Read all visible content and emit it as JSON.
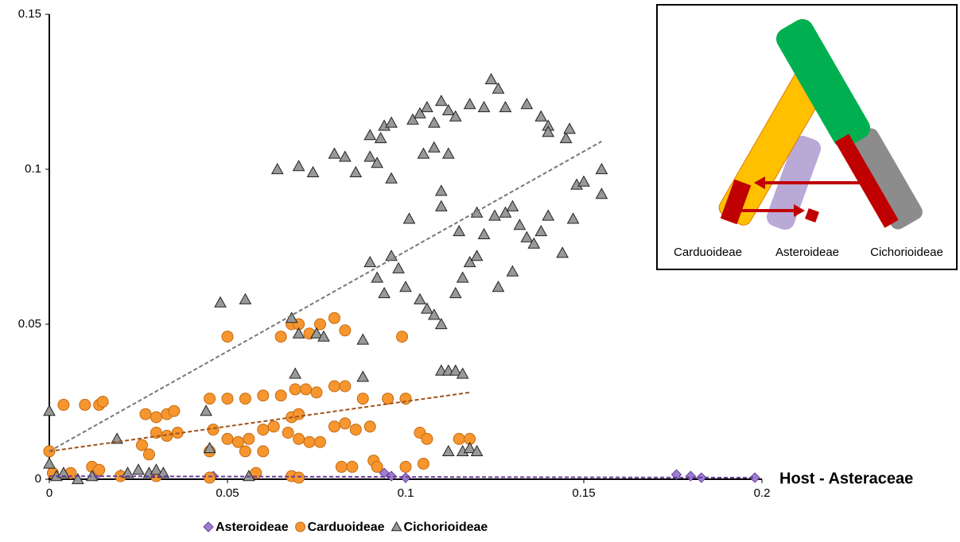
{
  "chart_data": {
    "type": "scatter",
    "xlabel": "Host - Asteraceae",
    "xlim": [
      0,
      0.2
    ],
    "ylim": [
      0,
      0.15
    ],
    "xticks": [
      0,
      0.05,
      0.1,
      0.15,
      0.2
    ],
    "yticks": [
      0,
      0.05,
      0.1,
      0.15
    ],
    "series": [
      {
        "name": "Asteroideae",
        "marker": "diamond",
        "color": "#9b7fcf",
        "edge": "#6a3d9a",
        "x": [
          0.013,
          0.02,
          0.046,
          0.094,
          0.096,
          0.1,
          0.176,
          0.18,
          0.183,
          0.198
        ],
        "values": [
          0.001,
          0.0015,
          0.001,
          0.002,
          0.001,
          0.0005,
          0.0015,
          0.001,
          0.0005,
          0.0005
        ],
        "trend": {
          "x": [
            0,
            0.198
          ],
          "y": [
            0.001,
            0.0005
          ]
        }
      },
      {
        "name": "Carduoideae",
        "marker": "circle",
        "color": "#f7962f",
        "edge": "#c46a10",
        "x": [
          0,
          0.001,
          0.004,
          0.01,
          0.014,
          0.015,
          0.006,
          0.012,
          0.014,
          0.027,
          0.03,
          0.033,
          0.035,
          0.03,
          0.033,
          0.036,
          0.026,
          0.028,
          0.045,
          0.05,
          0.055,
          0.06,
          0.065,
          0.069,
          0.072,
          0.075,
          0.046,
          0.05,
          0.053,
          0.056,
          0.06,
          0.063,
          0.067,
          0.07,
          0.073,
          0.076,
          0.08,
          0.083,
          0.086,
          0.09,
          0.068,
          0.07,
          0.08,
          0.083,
          0.088,
          0.095,
          0.1,
          0.104,
          0.106,
          0.115,
          0.118,
          0.058,
          0.068,
          0.07,
          0.082,
          0.085,
          0.091,
          0.092,
          0.1,
          0.105,
          0.05,
          0.065,
          0.068,
          0.07,
          0.073,
          0.076,
          0.08,
          0.083,
          0.099,
          0.02,
          0.03,
          0.045,
          0.055,
          0.06,
          0.045
        ],
        "values": [
          0.009,
          0.002,
          0.024,
          0.024,
          0.024,
          0.025,
          0.002,
          0.004,
          0.003,
          0.021,
          0.02,
          0.021,
          0.022,
          0.015,
          0.014,
          0.015,
          0.011,
          0.008,
          0.026,
          0.026,
          0.026,
          0.027,
          0.027,
          0.029,
          0.029,
          0.028,
          0.016,
          0.013,
          0.012,
          0.013,
          0.016,
          0.017,
          0.015,
          0.013,
          0.012,
          0.012,
          0.017,
          0.018,
          0.016,
          0.017,
          0.02,
          0.021,
          0.03,
          0.03,
          0.026,
          0.026,
          0.026,
          0.015,
          0.013,
          0.013,
          0.013,
          0.002,
          0.001,
          0.0005,
          0.004,
          0.004,
          0.006,
          0.004,
          0.004,
          0.005,
          0.046,
          0.046,
          0.05,
          0.05,
          0.047,
          0.05,
          0.052,
          0.048,
          0.046,
          0.001,
          0.001,
          0.0005,
          0.009,
          0.009,
          0.009
        ],
        "trend": {
          "x": [
            0,
            0.118
          ],
          "y": [
            0.009,
            0.028
          ]
        }
      },
      {
        "name": "Cichorioideae",
        "marker": "triangle",
        "color": "#999999",
        "edge": "#222222",
        "x": [
          0,
          0,
          0.002,
          0.004,
          0.008,
          0.012,
          0.019,
          0.022,
          0.025,
          0.028,
          0.03,
          0.032,
          0.044,
          0.045,
          0.048,
          0.055,
          0.056,
          0.064,
          0.07,
          0.074,
          0.068,
          0.069,
          0.07,
          0.075,
          0.077,
          0.08,
          0.083,
          0.086,
          0.088,
          0.088,
          0.09,
          0.09,
          0.092,
          0.093,
          0.094,
          0.096,
          0.096,
          0.09,
          0.092,
          0.094,
          0.096,
          0.098,
          0.1,
          0.102,
          0.104,
          0.106,
          0.108,
          0.11,
          0.112,
          0.114,
          0.104,
          0.106,
          0.108,
          0.11,
          0.11,
          0.112,
          0.114,
          0.116,
          0.101,
          0.11,
          0.105,
          0.108,
          0.112,
          0.114,
          0.116,
          0.118,
          0.12,
          0.118,
          0.122,
          0.124,
          0.126,
          0.128,
          0.12,
          0.122,
          0.125,
          0.128,
          0.13,
          0.132,
          0.134,
          0.136,
          0.138,
          0.14,
          0.134,
          0.138,
          0.14,
          0.14,
          0.144,
          0.145,
          0.146,
          0.147,
          0.148,
          0.15,
          0.155,
          0.155,
          0.112,
          0.116,
          0.118,
          0.12,
          0.126,
          0.13,
          0.11,
          0.115
        ],
        "values": [
          0.022,
          0.005,
          0.001,
          0.002,
          0,
          0.001,
          0.013,
          0.002,
          0.003,
          0.002,
          0.003,
          0.002,
          0.022,
          0.01,
          0.057,
          0.058,
          0.001,
          0.1,
          0.101,
          0.099,
          0.052,
          0.034,
          0.047,
          0.047,
          0.046,
          0.105,
          0.104,
          0.099,
          0.033,
          0.045,
          0.104,
          0.111,
          0.102,
          0.11,
          0.114,
          0.115,
          0.097,
          0.07,
          0.065,
          0.06,
          0.072,
          0.068,
          0.062,
          0.116,
          0.118,
          0.12,
          0.115,
          0.122,
          0.119,
          0.117,
          0.058,
          0.055,
          0.053,
          0.05,
          0.035,
          0.035,
          0.035,
          0.034,
          0.084,
          0.088,
          0.105,
          0.107,
          0.105,
          0.06,
          0.065,
          0.07,
          0.072,
          0.121,
          0.12,
          0.129,
          0.126,
          0.12,
          0.086,
          0.079,
          0.085,
          0.086,
          0.088,
          0.082,
          0.078,
          0.076,
          0.08,
          0.085,
          0.121,
          0.117,
          0.114,
          0.112,
          0.073,
          0.11,
          0.113,
          0.084,
          0.095,
          0.096,
          0.1,
          0.092,
          0.009,
          0.009,
          0.01,
          0.009,
          0.062,
          0.067,
          0.093,
          0.08
        ],
        "trend": {
          "x": [
            0,
            0.155
          ],
          "y": [
            0.009,
            0.109
          ]
        }
      }
    ]
  },
  "inset": {
    "labels": [
      "Carduoideae",
      "Asteroideae",
      "Cichorioideae"
    ]
  }
}
